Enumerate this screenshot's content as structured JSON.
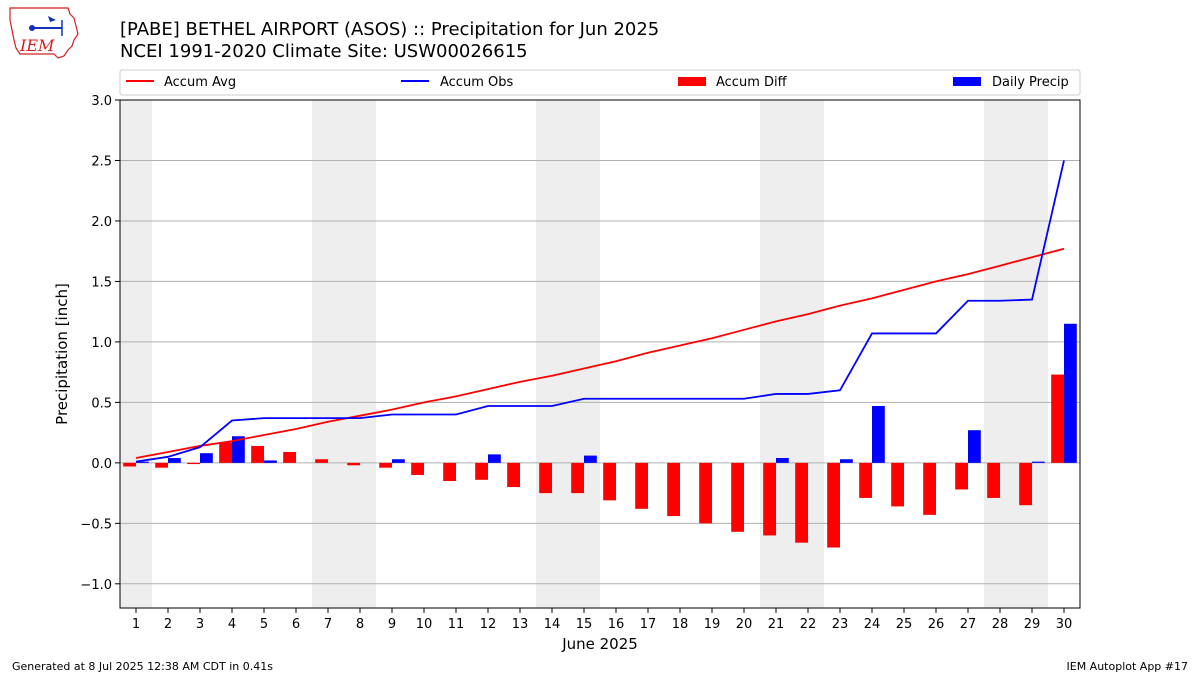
{
  "logo_text": "IEM",
  "title_line1": "[PABE] BETHEL AIRPORT (ASOS) :: Precipitation for Jun 2025",
  "title_line2": "NCEI 1991-2020 Climate Site: USW00026615",
  "footer_left": "Generated at 8 Jul 2025 12:38 AM CDT in 0.41s",
  "footer_right": "IEM Autoplot App #17",
  "colors": {
    "accum_avg": "#ff0000",
    "accum_obs": "#0000ff",
    "accum_diff": "#ff0000",
    "daily_precip": "#0000ff",
    "weekend_shade": "#eeeeee",
    "grid": "#b0b0b0"
  },
  "chart_data": {
    "type": "bar",
    "xlabel": "June 2025",
    "ylabel": "Precipitation [inch]",
    "ylim": [
      -1.2,
      3.0
    ],
    "xlim": [
      0.5,
      30.5
    ],
    "yticks": [
      "3.0",
      "2.5",
      "2.0",
      "1.5",
      "1.0",
      "0.5",
      "0.0",
      "−0.5",
      "−1.0"
    ],
    "ytick_values": [
      3.0,
      2.5,
      2.0,
      1.5,
      1.0,
      0.5,
      0.0,
      -0.5,
      -1.0
    ],
    "grid": "horizontal",
    "legend_placement": "top",
    "days": [
      1,
      2,
      3,
      4,
      5,
      6,
      7,
      8,
      9,
      10,
      11,
      12,
      13,
      14,
      15,
      16,
      17,
      18,
      19,
      20,
      21,
      22,
      23,
      24,
      25,
      26,
      27,
      28,
      29,
      30
    ],
    "shaded_spans": [
      [
        0.5,
        1.5
      ],
      [
        6.5,
        8.5
      ],
      [
        13.5,
        15.5
      ],
      [
        20.5,
        22.5
      ],
      [
        27.5,
        29.5
      ]
    ],
    "series": [
      {
        "name": "Accum Avg",
        "kind": "line",
        "values": [
          0.04,
          0.09,
          0.14,
          0.18,
          0.23,
          0.28,
          0.34,
          0.39,
          0.44,
          0.5,
          0.55,
          0.61,
          0.67,
          0.72,
          0.78,
          0.84,
          0.91,
          0.97,
          1.03,
          1.1,
          1.17,
          1.23,
          1.3,
          1.36,
          1.43,
          1.5,
          1.56,
          1.63,
          1.7,
          1.77
        ]
      },
      {
        "name": "Accum Obs",
        "kind": "line",
        "values": [
          0.01,
          0.05,
          0.13,
          0.35,
          0.37,
          0.37,
          0.37,
          0.37,
          0.4,
          0.4,
          0.4,
          0.47,
          0.47,
          0.47,
          0.53,
          0.53,
          0.53,
          0.53,
          0.53,
          0.53,
          0.57,
          0.57,
          0.6,
          1.07,
          1.07,
          1.07,
          1.34,
          1.34,
          1.35,
          2.5
        ]
      },
      {
        "name": "Accum Diff",
        "kind": "bar",
        "values": [
          -0.03,
          -0.04,
          -0.01,
          0.17,
          0.14,
          0.09,
          0.03,
          -0.02,
          -0.04,
          -0.1,
          -0.15,
          -0.14,
          -0.2,
          -0.25,
          -0.25,
          -0.31,
          -0.38,
          -0.44,
          -0.5,
          -0.57,
          -0.6,
          -0.66,
          -0.7,
          -0.29,
          -0.36,
          -0.43,
          -0.22,
          -0.29,
          -0.35,
          0.73
        ]
      },
      {
        "name": "Daily Precip",
        "kind": "bar",
        "values": [
          0.01,
          0.04,
          0.08,
          0.22,
          0.02,
          0,
          0,
          0,
          0.03,
          0,
          0,
          0.07,
          0,
          0,
          0.06,
          0,
          0,
          0,
          0,
          0,
          0.04,
          0,
          0.03,
          0.47,
          0,
          0,
          0.27,
          0,
          0.01,
          1.15
        ]
      }
    ]
  }
}
